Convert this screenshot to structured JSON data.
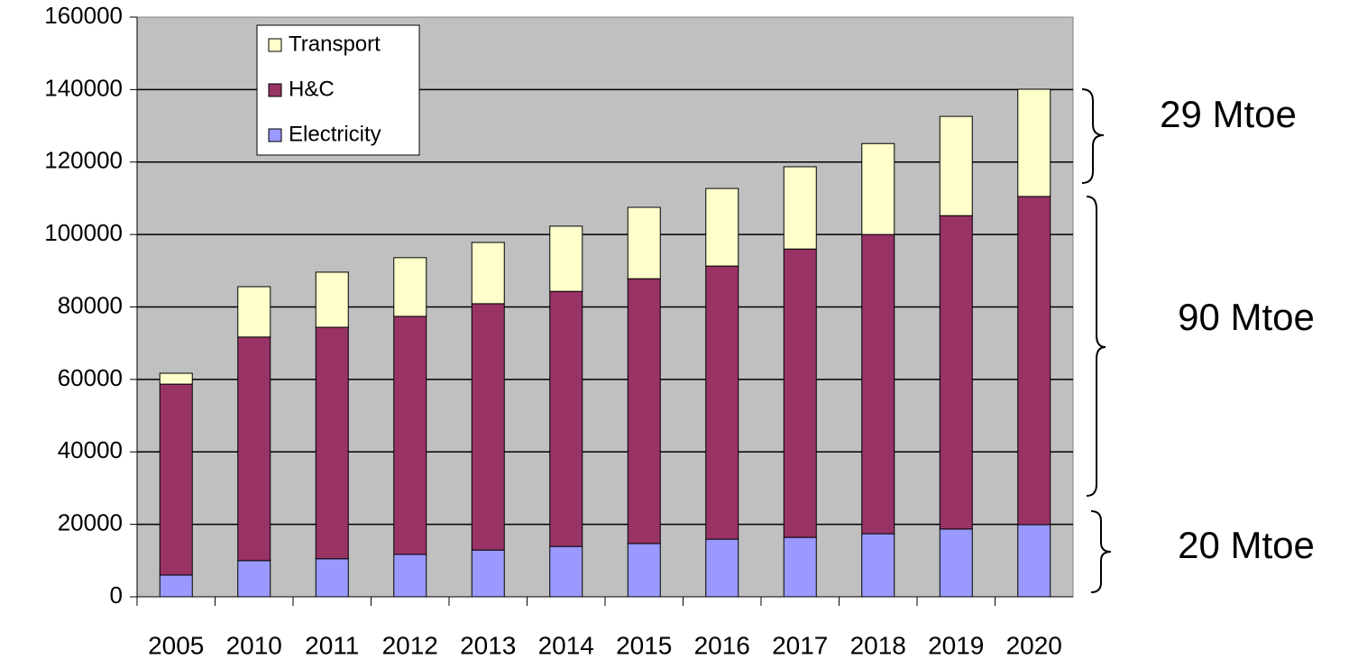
{
  "chart_data": {
    "type": "stacked_bar",
    "categories": [
      "2005",
      "2010",
      "2011",
      "2012",
      "2013",
      "2014",
      "2015",
      "2016",
      "2017",
      "2018",
      "2019",
      "2020"
    ],
    "series": [
      {
        "name": "Electricity",
        "color": "#9999ff",
        "values": [
          6000,
          10000,
          10500,
          11700,
          12900,
          13900,
          14700,
          15900,
          16400,
          17400,
          18700,
          19900
        ]
      },
      {
        "name": "H&C",
        "color": "#993366",
        "values": [
          52700,
          61700,
          63900,
          65700,
          68000,
          70400,
          73100,
          75400,
          79600,
          82600,
          86500,
          90600
        ]
      },
      {
        "name": "Transport",
        "color": "#ffffcc",
        "values": [
          3000,
          13900,
          15200,
          16200,
          16900,
          18000,
          19700,
          21400,
          22700,
          25100,
          27400,
          29600
        ]
      }
    ],
    "ylim": [
      0,
      160000
    ],
    "yticks": [
      0,
      20000,
      40000,
      60000,
      80000,
      100000,
      120000,
      140000,
      160000
    ],
    "grid": true,
    "annotations": [
      "29 Mtoe",
      "90 Mtoe",
      "20 Mtoe"
    ]
  }
}
